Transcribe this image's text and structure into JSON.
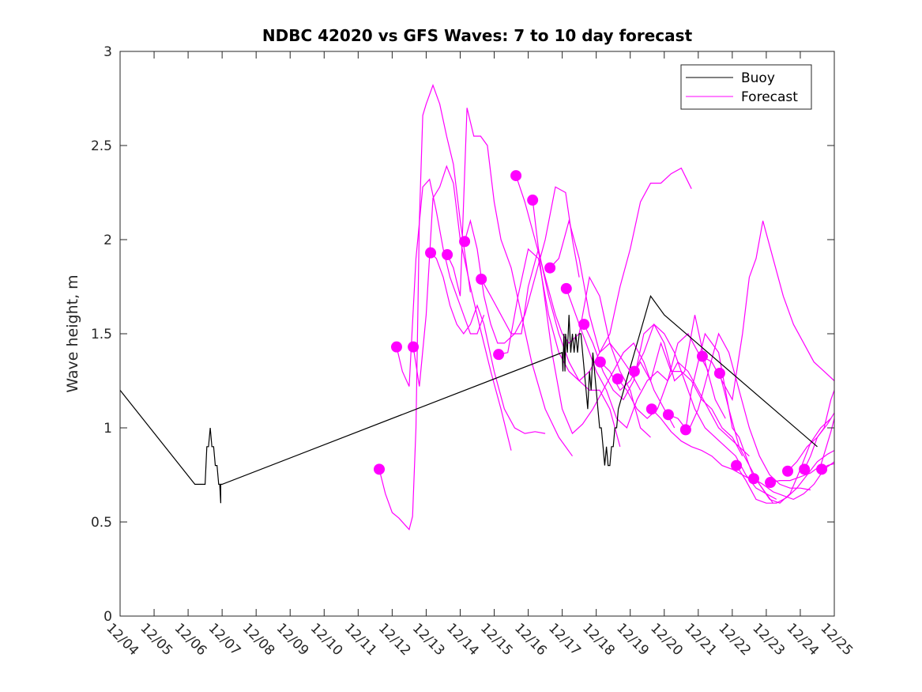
{
  "chart_data": {
    "type": "line",
    "title": "NDBC 42020 vs GFS Waves: 7 to 10 day forecast",
    "xlabel": "",
    "ylabel": "Wave height, m",
    "xlim_days_from_12_04": [
      0,
      21
    ],
    "ylim": [
      0,
      3
    ],
    "x_tick_labels": [
      "12/04",
      "12/05",
      "12/06",
      "12/07",
      "12/08",
      "12/09",
      "12/10",
      "12/11",
      "12/12",
      "12/13",
      "12/14",
      "12/15",
      "12/16",
      "12/17",
      "12/18",
      "12/19",
      "12/20",
      "12/21",
      "12/22",
      "12/23",
      "12/24",
      "12/25"
    ],
    "y_ticks": [
      0,
      0.5,
      1,
      1.5,
      2,
      2.5,
      3
    ],
    "y_tick_labels": [
      "0",
      "0.5",
      "1",
      "1.5",
      "2",
      "2.5",
      "3"
    ],
    "grid": false,
    "legend": {
      "position": "top-right",
      "entries": [
        {
          "label": "Buoy",
          "color": "#000000"
        },
        {
          "label": "Forecast",
          "color": "#ff00ff"
        }
      ]
    },
    "colors": {
      "buoy": "#000000",
      "forecast": "#ff00ff",
      "axis": "#262626"
    },
    "buoy": {
      "name": "Buoy",
      "x": [
        0,
        2.2,
        2.5,
        2.55,
        2.6,
        2.65,
        2.7,
        2.75,
        2.8,
        2.85,
        2.9,
        2.93,
        2.96,
        2.96,
        3.0,
        13.0,
        13.02,
        13.05,
        13.08,
        13.1,
        13.15,
        13.2,
        13.25,
        13.3,
        13.35,
        13.4,
        13.45,
        13.5,
        13.55,
        13.6,
        13.65,
        13.7,
        13.75,
        13.8,
        13.85,
        13.9,
        13.95,
        14.0,
        14.05,
        14.1,
        14.15,
        14.2,
        14.25,
        14.3,
        14.35,
        14.4,
        14.45,
        14.5,
        14.55,
        14.6,
        14.65,
        15.6,
        16.0,
        20.5
      ],
      "y": [
        1.2,
        0.7,
        0.7,
        0.9,
        0.9,
        1.0,
        0.9,
        0.9,
        0.8,
        0.8,
        0.7,
        0.7,
        0.6,
        0.7,
        0.7,
        1.4,
        1.3,
        1.5,
        1.3,
        1.5,
        1.4,
        1.6,
        1.4,
        1.5,
        1.4,
        1.5,
        1.4,
        1.5,
        1.5,
        1.4,
        1.3,
        1.2,
        1.1,
        1.3,
        1.2,
        1.4,
        1.3,
        1.2,
        1.1,
        1.0,
        1.0,
        0.9,
        0.8,
        0.9,
        0.8,
        0.8,
        0.9,
        0.9,
        1.0,
        1.0,
        1.1,
        1.7,
        1.6,
        0.9
      ]
    },
    "forecast_points": {
      "x": [
        7.62,
        8.13,
        8.62,
        9.13,
        9.62,
        10.13,
        10.62,
        11.13,
        11.64,
        12.13,
        12.64,
        13.12,
        13.64,
        14.12,
        14.63,
        15.12,
        15.63,
        16.12,
        16.63,
        17.12,
        17.63,
        18.12,
        18.63,
        19.12,
        19.63,
        20.12,
        20.63
      ],
      "y": [
        0.78,
        1.43,
        1.43,
        1.93,
        1.92,
        1.99,
        1.79,
        1.39,
        2.34,
        2.21,
        1.85,
        1.74,
        1.55,
        1.35,
        1.26,
        1.3,
        1.1,
        1.07,
        0.99,
        1.38,
        1.29,
        0.8,
        0.73,
        0.71,
        0.77,
        0.78,
        0.78
      ]
    },
    "forecast_series": [
      {
        "x": [
          7.62,
          7.8,
          8.0,
          8.2,
          8.4,
          8.5,
          8.6,
          8.7,
          8.8,
          8.9,
          9.0,
          9.2,
          9.4,
          9.6,
          9.8,
          10.0,
          10.3
        ],
        "y": [
          0.78,
          0.65,
          0.55,
          0.52,
          0.48,
          0.46,
          0.53,
          1.0,
          2.1,
          2.66,
          2.72,
          2.82,
          2.72,
          2.55,
          2.4,
          2.1,
          1.72
        ]
      },
      {
        "x": [
          8.13,
          8.3,
          8.5,
          8.7,
          8.9,
          9.1,
          9.3,
          9.5,
          9.7,
          9.9,
          10.1,
          10.3,
          10.5,
          10.7
        ],
        "y": [
          1.43,
          1.3,
          1.22,
          1.9,
          2.28,
          2.32,
          2.15,
          1.95,
          1.8,
          1.7,
          1.6,
          1.5,
          1.5,
          1.6
        ]
      },
      {
        "x": [
          8.62,
          8.8,
          9.0,
          9.2,
          9.4,
          9.6,
          9.8,
          10.0,
          10.3,
          10.6,
          10.9,
          11.2,
          11.5
        ],
        "y": [
          1.43,
          1.22,
          1.6,
          2.22,
          2.28,
          2.39,
          2.3,
          2.0,
          1.75,
          1.52,
          1.3,
          1.1,
          0.88
        ]
      },
      {
        "x": [
          9.13,
          9.3,
          9.5,
          9.7,
          9.9,
          10.1,
          10.3,
          10.5,
          10.7,
          11.0,
          11.3,
          11.6,
          11.9,
          12.2,
          12.5
        ],
        "y": [
          1.93,
          1.9,
          1.8,
          1.65,
          1.55,
          1.5,
          1.55,
          1.65,
          1.55,
          1.3,
          1.1,
          1.0,
          0.97,
          0.98,
          0.97
        ]
      },
      {
        "x": [
          9.62,
          9.8,
          10.0,
          10.2,
          10.4,
          10.6,
          10.8,
          11.0,
          11.2,
          11.5,
          11.8,
          12.1,
          12.5,
          12.9,
          13.3
        ],
        "y": [
          1.92,
          1.85,
          1.7,
          2.7,
          2.55,
          2.55,
          2.5,
          2.2,
          2.0,
          1.85,
          1.6,
          1.35,
          1.1,
          0.95,
          0.85
        ]
      },
      {
        "x": [
          10.13,
          10.3,
          10.5,
          10.7,
          10.9,
          11.1,
          11.3,
          11.6,
          11.9,
          12.2,
          12.5,
          12.8,
          13.1,
          13.3,
          13.5
        ],
        "y": [
          1.99,
          2.1,
          1.95,
          1.7,
          1.55,
          1.45,
          1.45,
          1.5,
          1.6,
          1.8,
          2.0,
          2.28,
          2.25,
          2.0,
          1.8
        ]
      },
      {
        "x": [
          10.62,
          10.9,
          11.2,
          11.5,
          11.8,
          12.0,
          12.3,
          12.6,
          12.9,
          13.2,
          13.5,
          13.8,
          14.1,
          14.4,
          14.7
        ],
        "y": [
          1.79,
          1.7,
          1.6,
          1.5,
          1.5,
          1.75,
          1.95,
          1.7,
          1.5,
          1.35,
          1.25,
          1.2,
          1.2,
          1.1,
          0.9
        ]
      },
      {
        "x": [
          11.13,
          11.4,
          11.7,
          12.0,
          12.3,
          12.6,
          12.9,
          13.2,
          13.5,
          13.8,
          14.1,
          14.4,
          14.7,
          15.0,
          15.3
        ],
        "y": [
          1.39,
          1.4,
          1.7,
          1.95,
          1.9,
          1.6,
          1.4,
          1.3,
          1.25,
          1.3,
          1.4,
          1.45,
          1.38,
          1.3,
          1.2
        ]
      },
      {
        "x": [
          11.64,
          11.9,
          12.2,
          12.5,
          12.8,
          13.0,
          13.2,
          13.5,
          13.8,
          14.1,
          14.4,
          14.7,
          15.0,
          15.3,
          15.6
        ],
        "y": [
          2.34,
          2.2,
          2.0,
          1.8,
          1.6,
          1.5,
          1.45,
          1.5,
          1.8,
          1.7,
          1.45,
          1.3,
          1.2,
          1.0,
          0.95
        ]
      },
      {
        "x": [
          12.13,
          12.4,
          12.7,
          13.0,
          13.3,
          13.6,
          13.9,
          14.2,
          14.5,
          14.8,
          15.1,
          15.4,
          15.7,
          16.0,
          16.3
        ],
        "y": [
          2.21,
          1.8,
          1.4,
          1.1,
          0.97,
          1.02,
          1.1,
          1.2,
          1.3,
          1.4,
          1.45,
          1.35,
          1.2,
          1.1,
          1.0
        ]
      },
      {
        "x": [
          12.64,
          12.9,
          13.2,
          13.5,
          13.8,
          14.1,
          14.4,
          14.7,
          15.0,
          15.3,
          15.6,
          15.9,
          16.2,
          16.5,
          16.8
        ],
        "y": [
          1.85,
          1.9,
          2.1,
          1.9,
          1.6,
          1.4,
          1.5,
          1.75,
          1.95,
          2.2,
          2.3,
          2.3,
          2.35,
          2.38,
          2.27
        ]
      },
      {
        "x": [
          13.12,
          13.4,
          13.7,
          14.0,
          14.3,
          14.6,
          14.9,
          15.2,
          15.5,
          15.8,
          16.1,
          16.4,
          16.7,
          17.0,
          17.3
        ],
        "y": [
          1.74,
          1.6,
          1.45,
          1.3,
          1.2,
          1.05,
          1.0,
          1.15,
          1.25,
          1.3,
          1.25,
          1.45,
          1.5,
          1.4,
          1.3
        ]
      },
      {
        "x": [
          13.64,
          13.9,
          14.2,
          14.5,
          14.8,
          15.1,
          15.4,
          15.7,
          16.0,
          16.3,
          16.6,
          16.9,
          17.2,
          17.5,
          17.8
        ],
        "y": [
          1.55,
          1.45,
          1.3,
          1.2,
          1.15,
          1.25,
          1.5,
          1.55,
          1.45,
          1.25,
          1.3,
          1.6,
          1.35,
          1.15,
          1.05
        ]
      },
      {
        "x": [
          14.12,
          14.4,
          14.7,
          15.0,
          15.3,
          15.6,
          15.9,
          16.2,
          16.5,
          16.8,
          17.1,
          17.4,
          17.7,
          18.0,
          18.3
        ],
        "y": [
          1.35,
          1.3,
          1.2,
          1.25,
          1.35,
          1.25,
          1.45,
          1.3,
          1.3,
          1.25,
          1.15,
          1.1,
          1.0,
          0.95,
          0.85
        ]
      },
      {
        "x": [
          14.63,
          14.9,
          15.2,
          15.5,
          15.8,
          16.1,
          16.4,
          16.7,
          17.0,
          17.3,
          17.6,
          17.9,
          18.2,
          18.5
        ],
        "y": [
          1.26,
          1.2,
          1.1,
          1.05,
          1.1,
          1.25,
          1.35,
          1.3,
          1.2,
          1.1,
          1.0,
          0.95,
          0.9,
          0.85
        ]
      },
      {
        "x": [
          15.12,
          15.4,
          15.7,
          16.0,
          16.3,
          16.6,
          16.9,
          17.2,
          17.5,
          17.8,
          18.1,
          18.4,
          18.7,
          19.0,
          19.3
        ],
        "y": [
          1.3,
          1.4,
          1.55,
          1.5,
          1.4,
          1.25,
          1.1,
          1.0,
          0.95,
          0.9,
          0.85,
          0.75,
          0.68,
          0.65,
          0.62
        ]
      },
      {
        "x": [
          15.63,
          15.9,
          16.2,
          16.5,
          16.8,
          17.1,
          17.4,
          17.7,
          18.0,
          18.3,
          18.6
        ],
        "y": [
          1.1,
          1.05,
          0.98,
          0.93,
          0.9,
          0.88,
          0.85,
          0.8,
          0.78,
          0.75,
          0.72
        ]
      },
      {
        "x": [
          16.12,
          16.4,
          16.7,
          17.0,
          17.3,
          17.6,
          17.9,
          18.2,
          18.5,
          18.8,
          19.1,
          19.4,
          19.7,
          20.0,
          20.3
        ],
        "y": [
          1.07,
          1.05,
          0.98,
          1.1,
          1.3,
          1.5,
          1.4,
          1.2,
          1.0,
          0.85,
          0.75,
          0.7,
          0.68,
          0.68,
          0.67
        ]
      },
      {
        "x": [
          16.63,
          16.8,
          17.0,
          17.2,
          17.4,
          17.6,
          17.8,
          18.0,
          18.2,
          18.4,
          18.6,
          18.8,
          19.0,
          19.2
        ],
        "y": [
          0.99,
          1.2,
          1.35,
          1.5,
          1.45,
          1.4,
          1.2,
          1.0,
          0.95,
          0.85,
          0.75,
          0.7,
          0.65,
          0.6
        ]
      },
      {
        "x": [
          17.12,
          17.4,
          17.7,
          18.0,
          18.3,
          18.5,
          18.7,
          18.9,
          19.2,
          19.5,
          19.8,
          20.1,
          20.4,
          20.7,
          21.0
        ],
        "y": [
          1.38,
          1.35,
          1.25,
          1.15,
          1.5,
          1.8,
          1.9,
          2.1,
          1.9,
          1.7,
          1.55,
          1.45,
          1.35,
          1.3,
          1.25
        ]
      },
      {
        "x": [
          17.63,
          17.9,
          18.2,
          18.5,
          18.8,
          19.1,
          19.4,
          19.7,
          20.0,
          20.3,
          20.6,
          20.9
        ],
        "y": [
          1.29,
          1.1,
          0.9,
          0.8,
          0.7,
          0.62,
          0.6,
          0.65,
          0.78,
          0.92,
          1.0,
          1.05
        ]
      },
      {
        "x": [
          18.12,
          18.4,
          18.7,
          19.0,
          19.3,
          19.6,
          19.9,
          20.2,
          20.5,
          20.8,
          21.0
        ],
        "y": [
          0.8,
          0.72,
          0.62,
          0.6,
          0.6,
          0.63,
          0.68,
          0.75,
          0.82,
          0.86,
          0.88
        ]
      },
      {
        "x": [
          18.63,
          18.9,
          19.2,
          19.5,
          19.8,
          20.1,
          20.4,
          20.7,
          21.0
        ],
        "y": [
          0.73,
          0.7,
          0.66,
          0.64,
          0.62,
          0.65,
          0.7,
          0.78,
          0.82
        ]
      },
      {
        "x": [
          19.12,
          19.4,
          19.7,
          20.0,
          20.3,
          20.6,
          20.9,
          21.0
        ],
        "y": [
          0.71,
          0.72,
          0.72,
          0.74,
          0.76,
          0.8,
          0.98,
          1.05
        ]
      },
      {
        "x": [
          19.63,
          19.9,
          20.2,
          20.5,
          20.8,
          21.0
        ],
        "y": [
          0.77,
          0.82,
          0.9,
          0.95,
          1.02,
          1.08
        ]
      },
      {
        "x": [
          20.12,
          20.3,
          20.5,
          20.7,
          20.9,
          21.0
        ],
        "y": [
          0.78,
          0.85,
          0.95,
          1.0,
          1.15,
          1.2
        ]
      },
      {
        "x": [
          20.63,
          20.8,
          21.0
        ],
        "y": [
          0.78,
          0.8,
          0.81
        ]
      }
    ]
  }
}
